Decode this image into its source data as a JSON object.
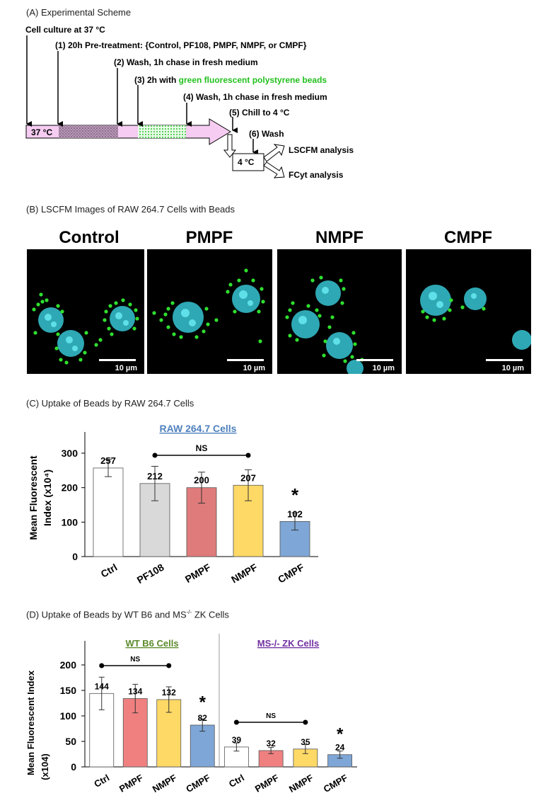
{
  "panel_a": {
    "title": "(A) Experimental Scheme",
    "step0": "Cell culture at 37 °C",
    "step1": "(1)  20h Pre-treatment: {Control, PF108, PMPF, NMPF, or CMPF}",
    "step2": "(2)  Wash, 1h chase in fresh medium",
    "step3_prefix": "(3)  2h with ",
    "step3_green": "green fluorescent polystyrene beads",
    "step4": "(4)  Wash, 1h chase in fresh medium",
    "step5": "(5)  Chill to 4 °C",
    "step6": "(6) Wash",
    "temp_37": "37 °C",
    "temp_4": "4 °C",
    "out1": "LSCFM analysis",
    "out2": "FCyt analysis"
  },
  "panel_b": {
    "title": "(B) LSCFM Images of RAW 264.7 Cells with Beads",
    "images": [
      {
        "label": "Control",
        "scale": "10 µm"
      },
      {
        "label": "PMPF",
        "scale": "10 µm"
      },
      {
        "label": "NMPF",
        "scale": "10 µm"
      },
      {
        "label": "CMPF",
        "scale": "10 µm"
      }
    ]
  },
  "chart_data": [
    {
      "type": "bar",
      "title": "(C) Uptake of Beads by RAW 264.7 Cells",
      "subtitle": "RAW 264.7 Cells",
      "ylabel": "Mean Fluorescent Index (x10⁴)",
      "categories": [
        "Ctrl",
        "PF108",
        "PMPF",
        "NMPF",
        "CMPF"
      ],
      "values": [
        257,
        212,
        200,
        207,
        102
      ],
      "errors": [
        25,
        50,
        45,
        45,
        25
      ],
      "value_labels": [
        "257",
        "212",
        "200",
        "207",
        "102"
      ],
      "colors": [
        "#ffffff",
        "#d9d9d9",
        "#e07b7b",
        "#ffd966",
        "#7ea6d6"
      ],
      "ylim": [
        0,
        300
      ],
      "yticks": [
        0,
        100,
        200,
        300
      ],
      "annotations": {
        "ns": "NS",
        "significance": "*"
      }
    },
    {
      "type": "bar",
      "title": "(D) Uptake of Beads by WT B6 and MS-/- ZK Cells",
      "ylabel": "Mean Fluorescent Index (x104)",
      "ylim": [
        0,
        200
      ],
      "yticks": [
        0,
        50,
        100,
        150,
        200
      ],
      "groups": [
        {
          "name": "WT B6 Cells",
          "categories": [
            "Ctrl",
            "PMPF",
            "NMPF",
            "CMPF"
          ],
          "values": [
            144,
            134,
            132,
            82
          ],
          "errors": [
            32,
            28,
            25,
            12
          ],
          "value_labels": [
            "144",
            "134",
            "132",
            "82"
          ],
          "colors": [
            "#ffffff",
            "#f08080",
            "#ffd966",
            "#7ea6d6"
          ]
        },
        {
          "name": "MS-/- ZK Cells",
          "categories": [
            "Ctrl",
            "PMPF",
            "NMPF",
            "CMPF"
          ],
          "values": [
            39,
            32,
            35,
            24
          ],
          "errors": [
            8,
            6,
            9,
            7
          ],
          "value_labels": [
            "39",
            "32",
            "35",
            "24"
          ],
          "colors": [
            "#ffffff",
            "#f08080",
            "#ffd966",
            "#7ea6d6"
          ]
        }
      ],
      "annotations": {
        "ns": "NS",
        "significance": "*"
      }
    }
  ],
  "colors": {
    "wt_title": "#5a8a2a",
    "ko_title": "#7030a0",
    "raw_title": "#4f81bd",
    "green_text": "#22c01e"
  }
}
